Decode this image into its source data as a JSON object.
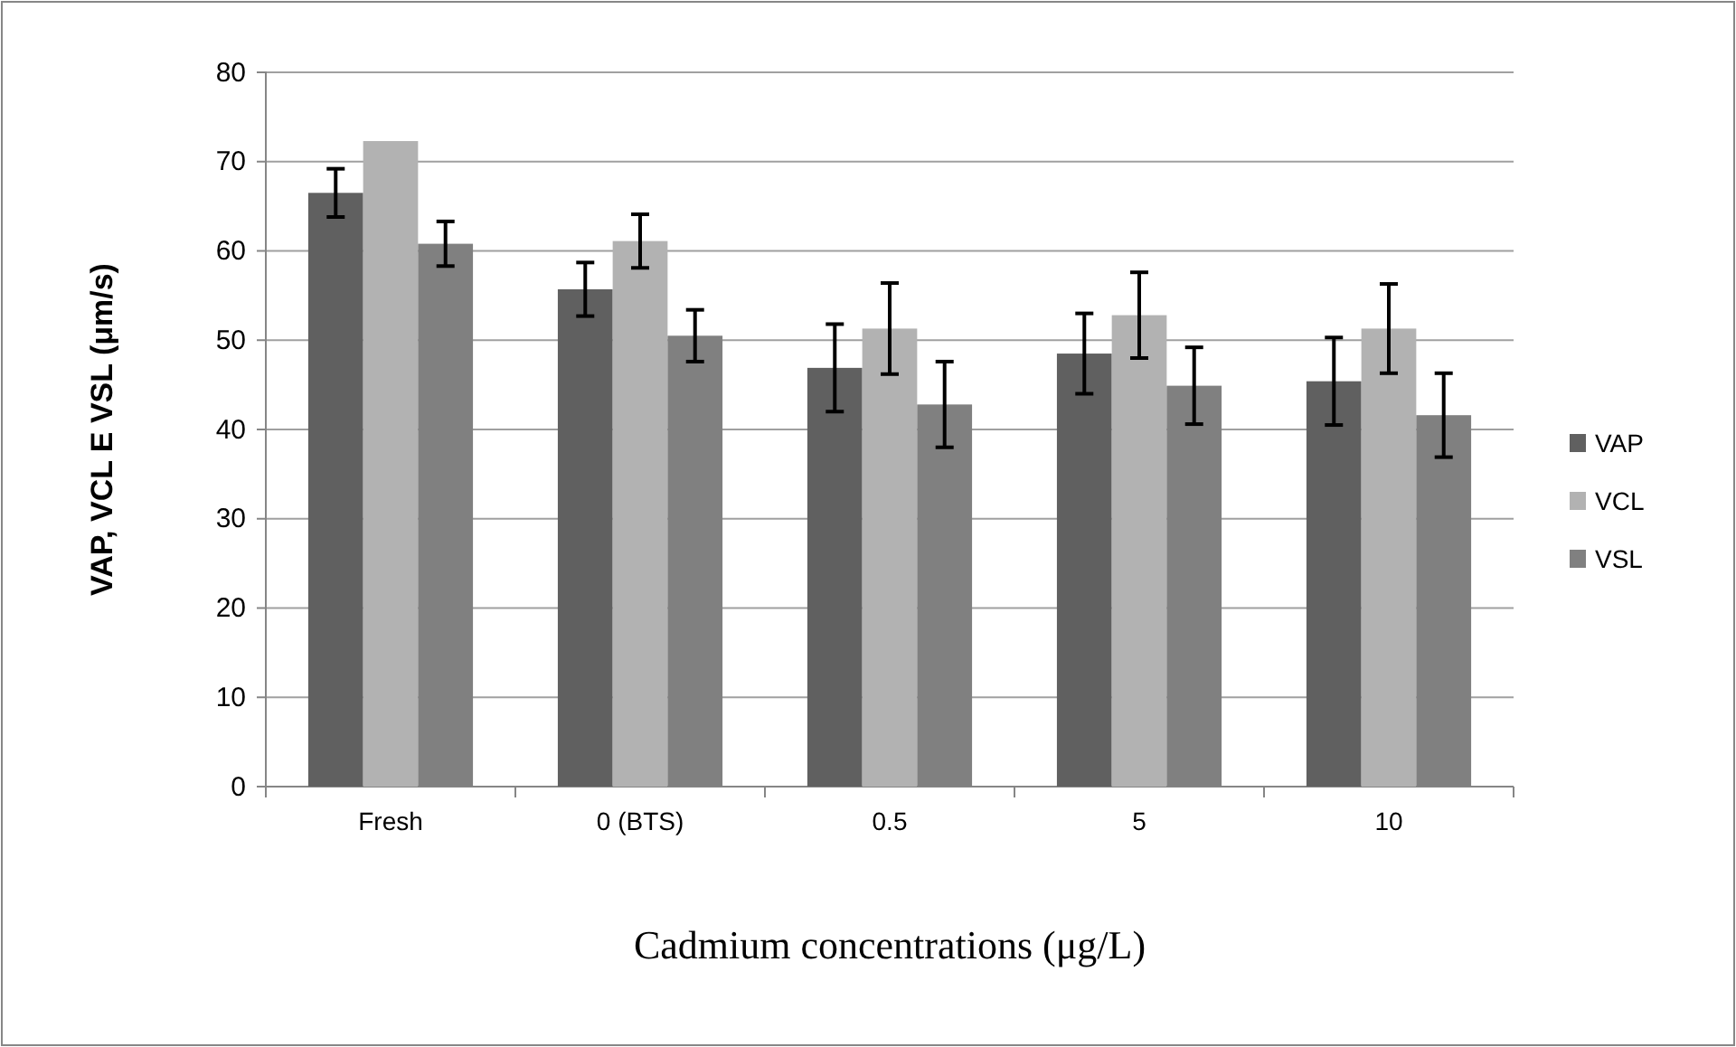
{
  "chart_data": {
    "type": "bar",
    "xlabel": "Cadmium concentrations (μg/L)",
    "ylabel": "VAP, VCL E VSL (μm/s)",
    "categories": [
      "Fresh",
      "0 (BTS)",
      "0.5",
      "5",
      "10"
    ],
    "series": [
      {
        "name": "VAP",
        "color": "#606060",
        "values": [
          66.5,
          55.7,
          46.9,
          48.5,
          45.4
        ],
        "errors": [
          2.7,
          3,
          4.9,
          4.5,
          4.9
        ]
      },
      {
        "name": "VCL",
        "color": "#b2b2b2",
        "values": [
          72.3,
          61.1,
          51.3,
          52.8,
          51.3
        ],
        "errors": [
          null,
          3,
          5.1,
          4.8,
          5
        ]
      },
      {
        "name": "VSL",
        "color": "#808080",
        "values": [
          60.8,
          50.5,
          42.8,
          44.9,
          41.6
        ],
        "errors": [
          2.5,
          2.9,
          4.8,
          4.3,
          4.7
        ]
      }
    ],
    "ylim": [
      0,
      80
    ],
    "yticks": [
      0,
      10,
      20,
      30,
      40,
      50,
      60,
      70,
      80
    ],
    "grid": "y",
    "legend": "right"
  }
}
